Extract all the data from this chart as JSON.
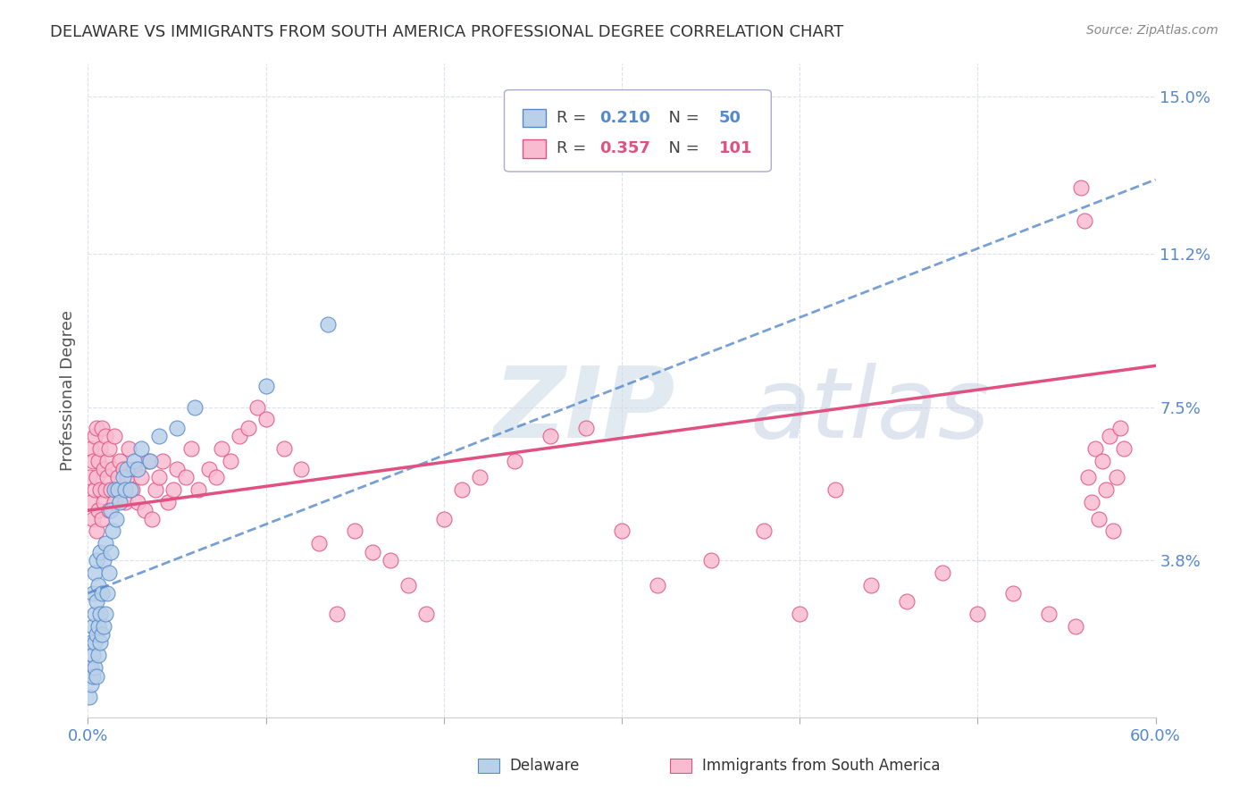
{
  "title": "DELAWARE VS IMMIGRANTS FROM SOUTH AMERICA PROFESSIONAL DEGREE CORRELATION CHART",
  "source": "Source: ZipAtlas.com",
  "ylabel": "Professional Degree",
  "xlim": [
    0.0,
    0.6
  ],
  "ylim": [
    0.0,
    0.158
  ],
  "xticks": [
    0.0,
    0.1,
    0.2,
    0.3,
    0.4,
    0.5,
    0.6
  ],
  "xticklabels": [
    "0.0%",
    "",
    "",
    "",
    "",
    "",
    "60.0%"
  ],
  "yticks": [
    0.038,
    0.075,
    0.112,
    0.15
  ],
  "yticklabels": [
    "3.8%",
    "7.5%",
    "11.2%",
    "15.0%"
  ],
  "series1_name": "Delaware",
  "series1_color": "#b8d0e8",
  "series1_R": 0.21,
  "series1_N": 50,
  "series1_line_color": "#5588cc",
  "series2_name": "Immigrants from South America",
  "series2_color": "#f8bbd0",
  "series2_R": 0.357,
  "series2_N": 101,
  "series2_line_color": "#e05080",
  "watermark": "ZIPatlas",
  "watermark_color": "#ccdcee",
  "background_color": "#ffffff",
  "grid_color": "#dde0ee",
  "title_color": "#333333",
  "tick_label_color": "#5588cc",
  "series1_x": [
    0.001,
    0.002,
    0.002,
    0.002,
    0.003,
    0.003,
    0.003,
    0.003,
    0.004,
    0.004,
    0.004,
    0.004,
    0.005,
    0.005,
    0.005,
    0.005,
    0.006,
    0.006,
    0.006,
    0.007,
    0.007,
    0.007,
    0.008,
    0.008,
    0.009,
    0.009,
    0.01,
    0.01,
    0.011,
    0.012,
    0.013,
    0.013,
    0.014,
    0.015,
    0.016,
    0.017,
    0.018,
    0.02,
    0.021,
    0.022,
    0.024,
    0.026,
    0.028,
    0.03,
    0.035,
    0.04,
    0.05,
    0.06,
    0.1,
    0.135
  ],
  "series1_y": [
    0.005,
    0.008,
    0.012,
    0.018,
    0.01,
    0.015,
    0.022,
    0.03,
    0.012,
    0.018,
    0.025,
    0.035,
    0.01,
    0.02,
    0.028,
    0.038,
    0.015,
    0.022,
    0.032,
    0.018,
    0.025,
    0.04,
    0.02,
    0.03,
    0.022,
    0.038,
    0.025,
    0.042,
    0.03,
    0.035,
    0.04,
    0.05,
    0.045,
    0.055,
    0.048,
    0.055,
    0.052,
    0.058,
    0.055,
    0.06,
    0.055,
    0.062,
    0.06,
    0.065,
    0.062,
    0.068,
    0.07,
    0.075,
    0.08,
    0.095
  ],
  "series2_x": [
    0.001,
    0.002,
    0.002,
    0.003,
    0.003,
    0.004,
    0.004,
    0.005,
    0.005,
    0.005,
    0.006,
    0.006,
    0.007,
    0.007,
    0.008,
    0.008,
    0.009,
    0.009,
    0.01,
    0.01,
    0.011,
    0.011,
    0.012,
    0.012,
    0.013,
    0.014,
    0.015,
    0.015,
    0.016,
    0.017,
    0.018,
    0.019,
    0.02,
    0.021,
    0.022,
    0.023,
    0.025,
    0.026,
    0.028,
    0.03,
    0.032,
    0.034,
    0.036,
    0.038,
    0.04,
    0.042,
    0.045,
    0.048,
    0.05,
    0.055,
    0.058,
    0.062,
    0.068,
    0.072,
    0.075,
    0.08,
    0.085,
    0.09,
    0.095,
    0.1,
    0.11,
    0.12,
    0.13,
    0.14,
    0.15,
    0.16,
    0.17,
    0.18,
    0.19,
    0.2,
    0.21,
    0.22,
    0.24,
    0.26,
    0.28,
    0.3,
    0.32,
    0.35,
    0.38,
    0.4,
    0.42,
    0.44,
    0.46,
    0.48,
    0.5,
    0.52,
    0.54,
    0.555,
    0.558,
    0.56,
    0.562,
    0.564,
    0.566,
    0.568,
    0.57,
    0.572,
    0.574,
    0.576,
    0.578,
    0.58,
    0.582
  ],
  "series2_y": [
    0.058,
    0.052,
    0.065,
    0.048,
    0.062,
    0.055,
    0.068,
    0.045,
    0.058,
    0.07,
    0.05,
    0.062,
    0.055,
    0.065,
    0.048,
    0.07,
    0.052,
    0.06,
    0.055,
    0.068,
    0.058,
    0.062,
    0.05,
    0.065,
    0.055,
    0.06,
    0.052,
    0.068,
    0.055,
    0.058,
    0.062,
    0.055,
    0.06,
    0.052,
    0.058,
    0.065,
    0.055,
    0.06,
    0.052,
    0.058,
    0.05,
    0.062,
    0.048,
    0.055,
    0.058,
    0.062,
    0.052,
    0.055,
    0.06,
    0.058,
    0.065,
    0.055,
    0.06,
    0.058,
    0.065,
    0.062,
    0.068,
    0.07,
    0.075,
    0.072,
    0.065,
    0.06,
    0.042,
    0.025,
    0.045,
    0.04,
    0.038,
    0.032,
    0.025,
    0.048,
    0.055,
    0.058,
    0.062,
    0.068,
    0.07,
    0.045,
    0.032,
    0.038,
    0.045,
    0.025,
    0.055,
    0.032,
    0.028,
    0.035,
    0.025,
    0.03,
    0.025,
    0.022,
    0.128,
    0.12,
    0.058,
    0.052,
    0.065,
    0.048,
    0.062,
    0.055,
    0.068,
    0.045,
    0.058,
    0.07,
    0.065
  ],
  "trend1_x0": 0.0,
  "trend1_x1": 0.6,
  "trend1_y0": 0.03,
  "trend1_y1": 0.13,
  "trend2_x0": 0.0,
  "trend2_x1": 0.6,
  "trend2_y0": 0.05,
  "trend2_y1": 0.085
}
